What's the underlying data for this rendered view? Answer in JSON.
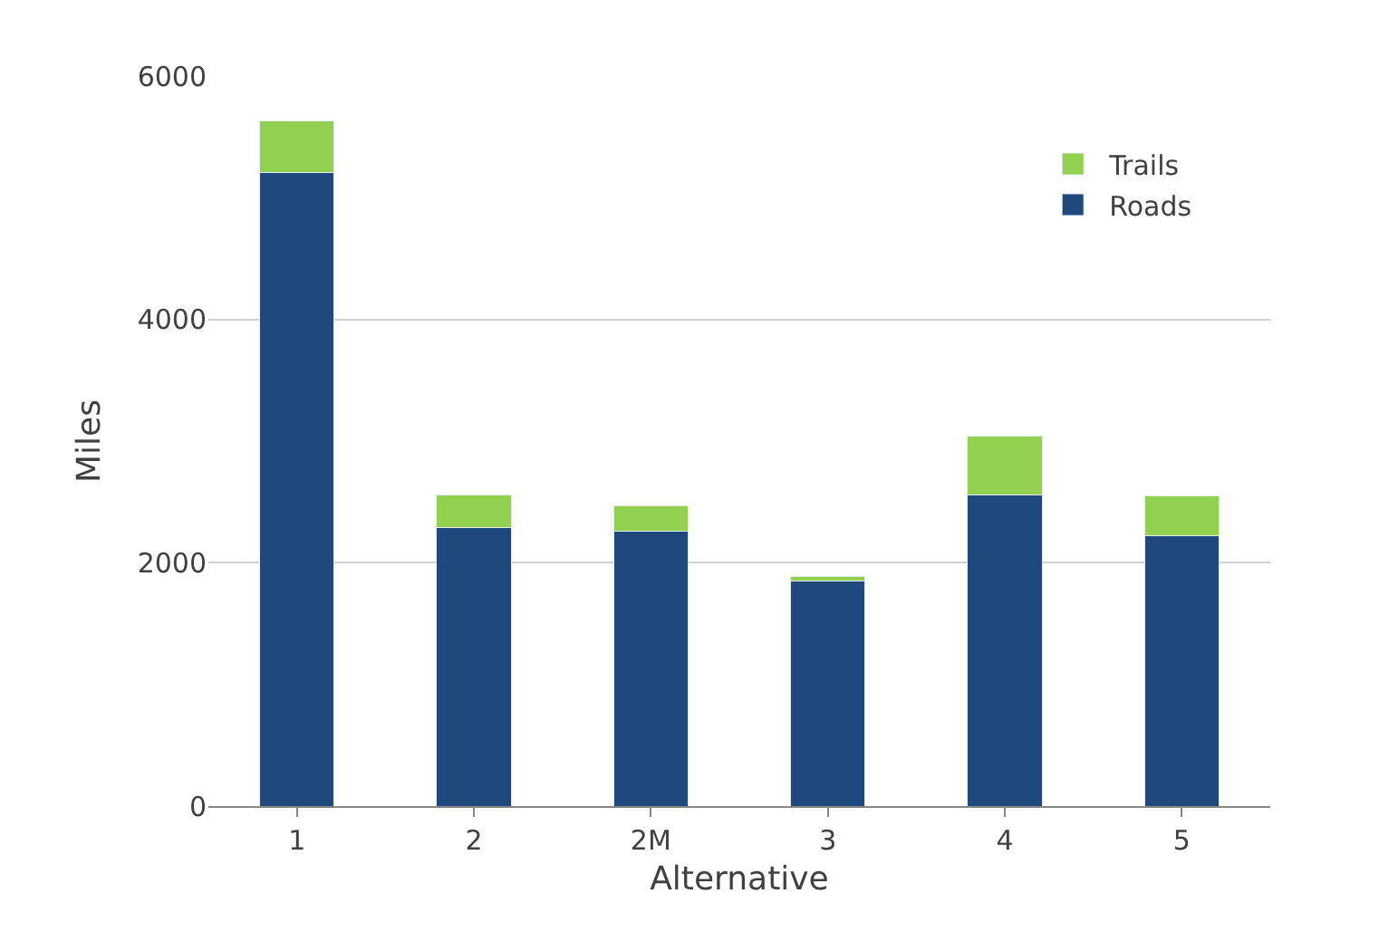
{
  "chart_data": {
    "type": "bar",
    "stacked": true,
    "xlabel": "Alternative",
    "ylabel": "Miles",
    "categories": [
      "1",
      "2",
      "2M",
      "3",
      "4",
      "5"
    ],
    "series": [
      {
        "name": "Roads",
        "color": "#1f497d",
        "values": [
          5210,
          2290,
          2260,
          1850,
          2560,
          2220
        ]
      },
      {
        "name": "Trails",
        "color": "#92d050",
        "values": [
          420,
          270,
          210,
          40,
          480,
          330
        ]
      }
    ],
    "ylim": [
      0,
      6000
    ],
    "yticks": [
      0,
      2000,
      4000,
      6000
    ],
    "grid": "y",
    "legend": "top right"
  }
}
